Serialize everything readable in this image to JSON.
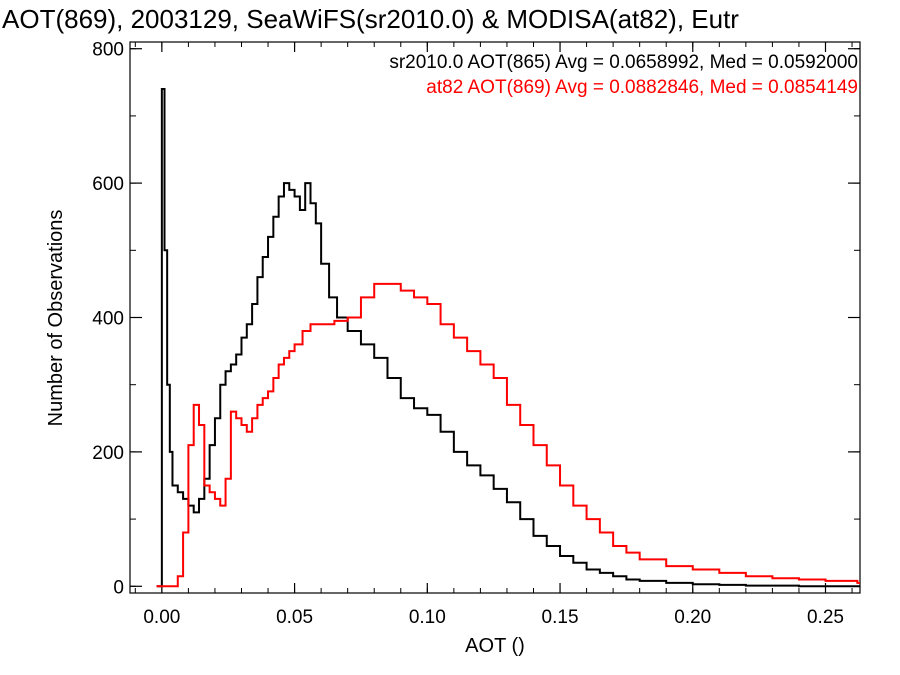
{
  "chart_data": {
    "type": "line",
    "title": "AOT(869), 2003129, SeaWiFS(sr2010.0) & MODISA(at82), Eutr",
    "xlabel": "AOT ()",
    "ylabel": "Number of Observations",
    "xlim": [
      -0.012,
      0.263
    ],
    "ylim": [
      -10,
      810
    ],
    "x_ticks": [
      "0.00",
      "0.05",
      "0.10",
      "0.15",
      "0.20",
      "0.25"
    ],
    "y_ticks": [
      "0",
      "200",
      "400",
      "600",
      "800"
    ],
    "grid": false,
    "legend_position": "top-right",
    "series": [
      {
        "name": "sr2010.0 AOT(865) Avg = 0.0658992, Med = 0.0592000",
        "color": "#000000",
        "x": [
          -0.002,
          -0.001,
          0.0,
          0.001,
          0.002,
          0.003,
          0.004,
          0.006,
          0.008,
          0.01,
          0.012,
          0.014,
          0.016,
          0.018,
          0.02,
          0.022,
          0.024,
          0.026,
          0.028,
          0.03,
          0.032,
          0.034,
          0.036,
          0.038,
          0.04,
          0.042,
          0.044,
          0.046,
          0.048,
          0.05,
          0.052,
          0.054,
          0.056,
          0.058,
          0.06,
          0.063,
          0.066,
          0.07,
          0.075,
          0.08,
          0.085,
          0.09,
          0.095,
          0.1,
          0.105,
          0.11,
          0.115,
          0.12,
          0.125,
          0.13,
          0.135,
          0.14,
          0.145,
          0.15,
          0.155,
          0.16,
          0.165,
          0.17,
          0.175,
          0.18,
          0.19,
          0.2,
          0.21,
          0.22,
          0.23,
          0.24,
          0.25,
          0.262
        ],
        "y": [
          0,
          0,
          740,
          500,
          300,
          200,
          150,
          140,
          130,
          120,
          110,
          130,
          160,
          210,
          250,
          300,
          320,
          330,
          345,
          370,
          390,
          420,
          460,
          490,
          520,
          550,
          580,
          600,
          590,
          580,
          560,
          600,
          570,
          540,
          480,
          430,
          400,
          380,
          360,
          340,
          310,
          280,
          265,
          255,
          230,
          200,
          180,
          165,
          145,
          125,
          100,
          75,
          60,
          45,
          35,
          25,
          20,
          15,
          10,
          8,
          5,
          3,
          2,
          1,
          1,
          0,
          0,
          0
        ]
      },
      {
        "name": "at82 AOT(869) Avg = 0.0882846, Med = 0.0854149",
        "color": "#ff0000",
        "x": [
          -0.002,
          0.0,
          0.002,
          0.004,
          0.006,
          0.008,
          0.01,
          0.012,
          0.014,
          0.016,
          0.018,
          0.02,
          0.022,
          0.024,
          0.026,
          0.028,
          0.03,
          0.032,
          0.034,
          0.036,
          0.038,
          0.04,
          0.042,
          0.044,
          0.046,
          0.048,
          0.05,
          0.053,
          0.056,
          0.06,
          0.065,
          0.07,
          0.075,
          0.08,
          0.085,
          0.09,
          0.095,
          0.1,
          0.105,
          0.11,
          0.115,
          0.12,
          0.125,
          0.13,
          0.135,
          0.14,
          0.145,
          0.15,
          0.155,
          0.16,
          0.165,
          0.17,
          0.175,
          0.18,
          0.19,
          0.2,
          0.21,
          0.22,
          0.23,
          0.24,
          0.25,
          0.262
        ],
        "y": [
          0,
          0,
          0,
          0,
          15,
          80,
          210,
          270,
          240,
          150,
          140,
          130,
          120,
          160,
          260,
          250,
          240,
          230,
          250,
          270,
          280,
          290,
          310,
          330,
          340,
          350,
          360,
          380,
          390,
          390,
          395,
          400,
          430,
          450,
          450,
          440,
          430,
          420,
          390,
          370,
          350,
          330,
          310,
          270,
          240,
          210,
          180,
          150,
          120,
          100,
          80,
          60,
          50,
          40,
          30,
          25,
          20,
          15,
          12,
          10,
          8,
          5
        ]
      }
    ]
  }
}
